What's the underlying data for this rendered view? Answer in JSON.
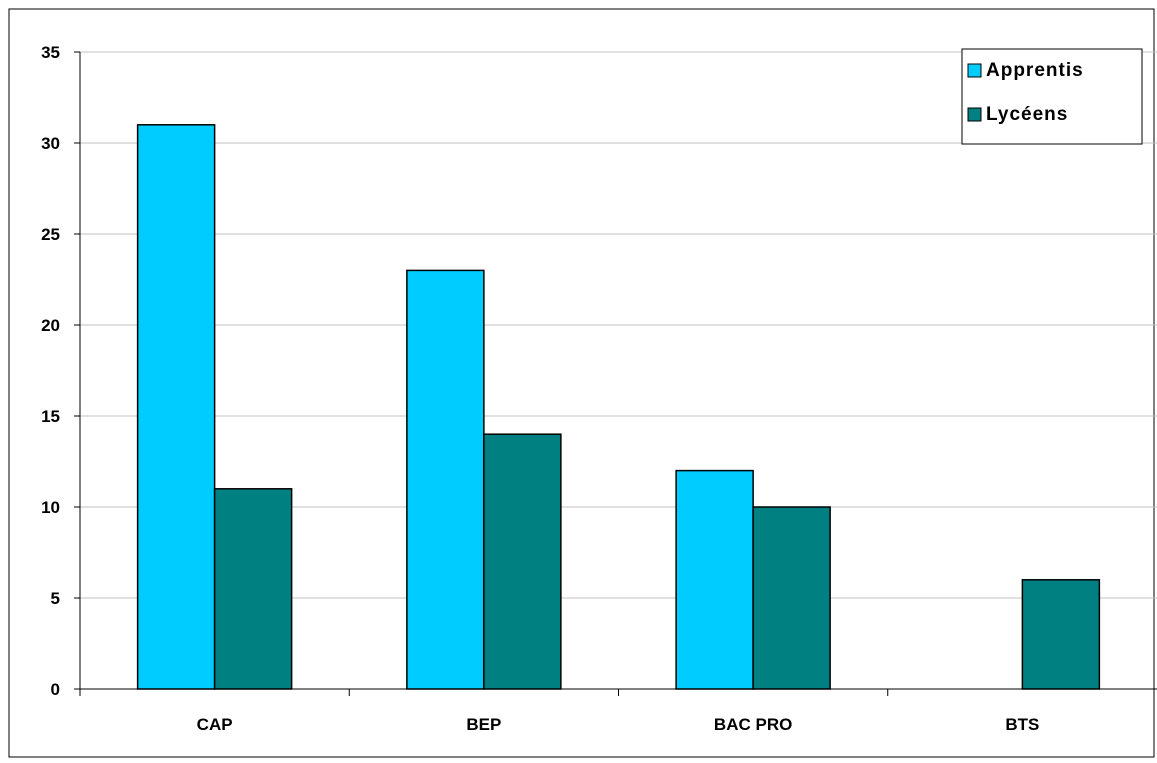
{
  "chart_data": {
    "type": "bar",
    "title": "",
    "xlabel": "",
    "ylabel": "",
    "categories": [
      "CAP",
      "BEP",
      "BAC PRO",
      "BTS"
    ],
    "series": [
      {
        "name": "Apprentis",
        "color": "#00ccff",
        "values": [
          31,
          23,
          12,
          0
        ]
      },
      {
        "name": "Lycéens",
        "color": "#008080",
        "values": [
          11,
          14,
          10,
          6
        ]
      }
    ],
    "ylim": [
      0,
      35
    ],
    "yticks": [
      0,
      5,
      10,
      15,
      20,
      25,
      30,
      35
    ],
    "grid": true,
    "legend": "top-right"
  }
}
